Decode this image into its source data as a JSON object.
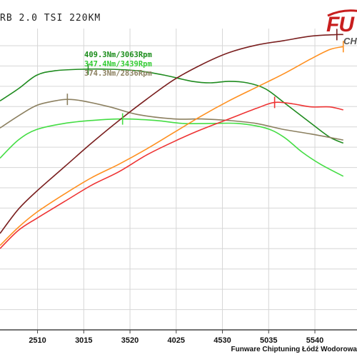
{
  "title": "RB 2.0 TSI 220KM",
  "footer": "Funware Chiptuning Łódź Wodorowa",
  "logo": {
    "main": "FU",
    "sub": "CH"
  },
  "chart_data": {
    "type": "line",
    "xlabel": "",
    "ylabel": "",
    "xlim": [
      2100,
      6000
    ],
    "ylim": [
      0,
      100
    ],
    "x_ticks": [
      2510,
      3015,
      3520,
      4025,
      4530,
      5035,
      5540
    ],
    "grid": true,
    "annotations": [
      {
        "text": "409.3Nm/3063Rpm",
        "color": "#1a8c1a"
      },
      {
        "text": "347.4Nm/3439Rpm",
        "color": "#33cc33"
      },
      {
        "text": "374.3Nm/2836Rpm",
        "color": "#8c8060"
      }
    ],
    "series": [
      {
        "color": "#1f8b1f",
        "peak_x": 3063,
        "points": [
          [
            2100,
            76
          ],
          [
            2300,
            80
          ],
          [
            2500,
            84.5
          ],
          [
            2700,
            86
          ],
          [
            3000,
            86.5
          ],
          [
            3300,
            86.5
          ],
          [
            3600,
            86
          ],
          [
            3900,
            84.5
          ],
          [
            4200,
            82.5
          ],
          [
            4400,
            82
          ],
          [
            4600,
            82.5
          ],
          [
            4800,
            82
          ],
          [
            5000,
            80
          ],
          [
            5200,
            75.5
          ],
          [
            5500,
            68.5
          ],
          [
            5700,
            64
          ],
          [
            5850,
            62
          ]
        ]
      },
      {
        "color": "#8c8060",
        "peak_x": 2836,
        "points": [
          [
            2100,
            67
          ],
          [
            2300,
            71
          ],
          [
            2500,
            74.5
          ],
          [
            2700,
            76
          ],
          [
            2836,
            76.5
          ],
          [
            3000,
            76
          ],
          [
            3300,
            74
          ],
          [
            3600,
            71.5
          ],
          [
            4000,
            70
          ],
          [
            4300,
            70
          ],
          [
            4600,
            69.5
          ],
          [
            4900,
            68.5
          ],
          [
            5200,
            66.5
          ],
          [
            5500,
            65
          ],
          [
            5850,
            63
          ]
        ]
      },
      {
        "color": "#44dd44",
        "peak_x": 3439,
        "points": [
          [
            2100,
            57
          ],
          [
            2300,
            63
          ],
          [
            2500,
            66.5
          ],
          [
            2800,
            68.5
          ],
          [
            3100,
            69.5
          ],
          [
            3439,
            70
          ],
          [
            3800,
            69.5
          ],
          [
            4100,
            68.5
          ],
          [
            4400,
            68.5
          ],
          [
            4700,
            68.5
          ],
          [
            5000,
            67
          ],
          [
            5200,
            64
          ],
          [
            5400,
            59
          ],
          [
            5600,
            55
          ],
          [
            5850,
            51
          ]
        ]
      },
      {
        "color": "#7a1f1f",
        "peak_x": 5780,
        "points": [
          [
            2100,
            32
          ],
          [
            2300,
            40
          ],
          [
            2500,
            46
          ],
          [
            2800,
            54
          ],
          [
            3100,
            62
          ],
          [
            3400,
            69.5
          ],
          [
            3700,
            76.5
          ],
          [
            4000,
            83
          ],
          [
            4300,
            88
          ],
          [
            4600,
            92
          ],
          [
            4900,
            94.5
          ],
          [
            5200,
            96
          ],
          [
            5500,
            97.5
          ],
          [
            5780,
            98
          ],
          [
            5850,
            98
          ]
        ]
      },
      {
        "color": "#ff9020",
        "peak_x": 5850,
        "points": [
          [
            2100,
            28
          ],
          [
            2300,
            34
          ],
          [
            2500,
            39
          ],
          [
            2800,
            45
          ],
          [
            3100,
            50.5
          ],
          [
            3400,
            55
          ],
          [
            3700,
            60
          ],
          [
            4000,
            65.5
          ],
          [
            4300,
            71
          ],
          [
            4600,
            76
          ],
          [
            4900,
            80.5
          ],
          [
            5200,
            85
          ],
          [
            5500,
            90
          ],
          [
            5700,
            93
          ],
          [
            5850,
            94
          ]
        ]
      },
      {
        "color": "#ee3333",
        "peak_x": 5100,
        "points": [
          [
            2100,
            27
          ],
          [
            2300,
            33
          ],
          [
            2500,
            37
          ],
          [
            2800,
            42.5
          ],
          [
            3100,
            48
          ],
          [
            3400,
            52.5
          ],
          [
            3700,
            58
          ],
          [
            4000,
            62.5
          ],
          [
            4300,
            66.5
          ],
          [
            4600,
            70
          ],
          [
            4900,
            73.5
          ],
          [
            5100,
            75.5
          ],
          [
            5300,
            75
          ],
          [
            5500,
            74
          ],
          [
            5700,
            74
          ],
          [
            5850,
            73
          ]
        ]
      }
    ]
  }
}
